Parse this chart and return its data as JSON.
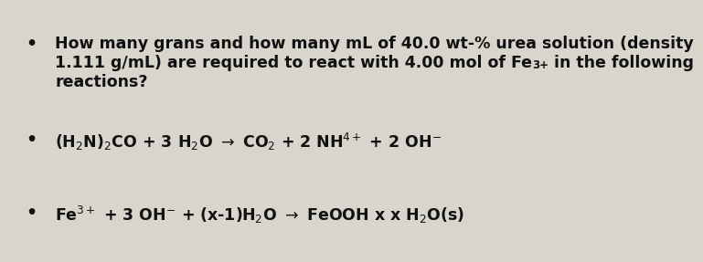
{
  "background_color": "#d8d5cc",
  "text_color": "#111111",
  "bullet": "•",
  "font_size": 12.5,
  "font_size_eq": 12.5,
  "para_line1": "How many grans and how many mL of 40.0 wt-% urea solution (density",
  "para_line2a": "1.111 g/mL) are required to react with 4.00 mol of Fe",
  "para_line2b": "3+",
  "para_line2c": " in the following",
  "para_line3": "reactions?",
  "eq1": "(H$_2$N)$_2$CO + 3 H$_2$O $\\rightarrow$ CO$_2$ + 2 NH$^{4+}$ + 2 OH$^{-}$",
  "eq2": "Fe$^{3+}$ + 3 OH$^{-}$ + (x-1)H$_2$O $\\rightarrow$ FeOOH x x H$_2$O(s)"
}
